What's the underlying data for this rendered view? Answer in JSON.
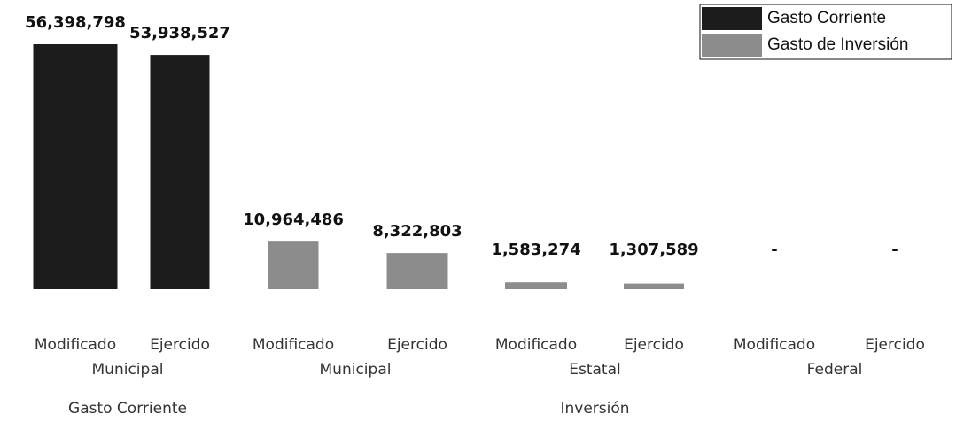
{
  "chart_data": {
    "type": "bar",
    "groups": [
      {
        "name": "Gasto Corriente",
        "subgroups": [
          {
            "name": "Municipal",
            "categories": [
              "Modificado",
              "Ejercido"
            ]
          }
        ]
      },
      {
        "name": "Inversión",
        "subgroups": [
          {
            "name": "Municipal",
            "categories": [
              "Modificado",
              "Ejercido"
            ]
          },
          {
            "name": "Estatal",
            "categories": [
              "Modificado",
              "Ejercido"
            ]
          },
          {
            "name": "Federal",
            "categories": [
              "Modificado",
              "Ejercido"
            ]
          }
        ]
      }
    ],
    "series": [
      {
        "name": "Gasto Corriente",
        "color": "#1c1c1c",
        "values": [
          56398798,
          53938527,
          null,
          null,
          null,
          null,
          null,
          null
        ],
        "value_labels": [
          "56,398,798",
          "53,938,527",
          null,
          null,
          null,
          null,
          null,
          null
        ]
      },
      {
        "name": "Gasto de Inversión",
        "color": "#8c8c8c",
        "values": [
          null,
          null,
          10964486,
          8322803,
          1583274,
          1307589,
          0,
          0
        ],
        "value_labels": [
          null,
          null,
          "10,964,486",
          "8,322,803",
          "1,583,274",
          "1,307,589",
          "-",
          "-"
        ]
      }
    ],
    "legend": "top-right"
  }
}
